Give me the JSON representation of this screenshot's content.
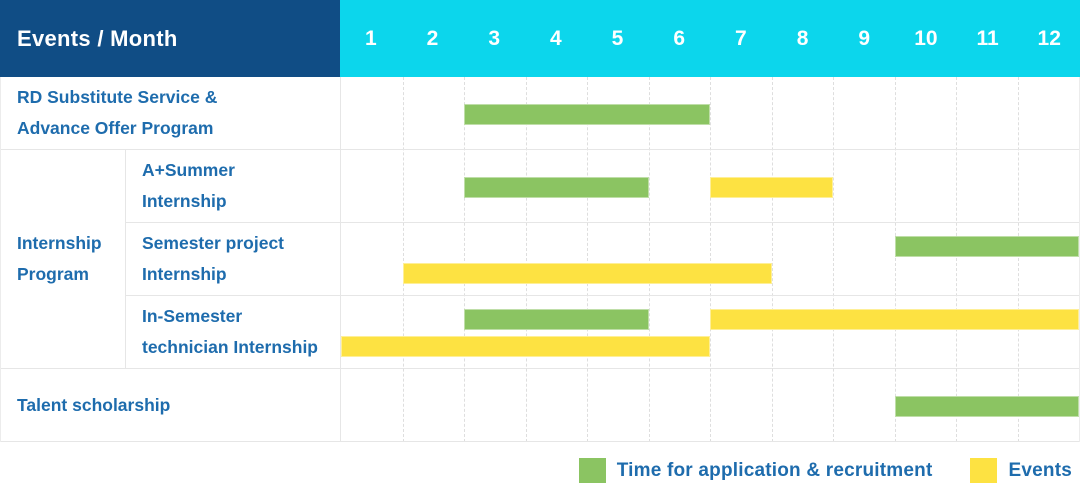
{
  "header": {
    "label": "Events / Month",
    "months": [
      "1",
      "2",
      "3",
      "4",
      "5",
      "6",
      "7",
      "8",
      "9",
      "10",
      "11",
      "12"
    ]
  },
  "colors": {
    "header_bg": "#104d85",
    "header_text": "#ffffff",
    "months_bg": "#0cd6ec",
    "label_text": "#1e6cad",
    "application": "#8bc462",
    "event": "#fde242",
    "grid_line": "#dedede"
  },
  "legend": {
    "items": [
      {
        "series": "application",
        "label": "Time for application & recruitment",
        "color": "#8bc462"
      },
      {
        "series": "event",
        "label": "Events",
        "color": "#fde242"
      }
    ]
  },
  "chart_data": {
    "type": "table",
    "subtype": "gantt",
    "title": "Events / Month",
    "x_axis": {
      "label": "Month",
      "ticks": [
        "1",
        "2",
        "3",
        "4",
        "5",
        "6",
        "7",
        "8",
        "9",
        "10",
        "11",
        "12"
      ],
      "range": [
        1,
        12
      ]
    },
    "legend": [
      "Time for application & recruitment",
      "Events"
    ],
    "legend_position": "bottom-right",
    "grid": "dashed-vertical-month-lines",
    "tasks": [
      {
        "name": "RD Substitute Service &\nAdvance Offer Program",
        "group": null,
        "bars": [
          {
            "series": "application",
            "start_month": 3,
            "end_month": 6,
            "lane": "center"
          }
        ]
      },
      {
        "name": "A+Summer\nInternship",
        "group": "Internship\nProgram",
        "bars": [
          {
            "series": "application",
            "start_month": 3,
            "end_month": 5,
            "lane": "center"
          },
          {
            "series": "event",
            "start_month": 7,
            "end_month": 8,
            "lane": "center"
          }
        ]
      },
      {
        "name": "Semester project\nInternship",
        "group": "Internship\nProgram",
        "bars": [
          {
            "series": "application",
            "start_month": 10,
            "end_month": 12,
            "lane": "top"
          },
          {
            "series": "event",
            "start_month": 2,
            "end_month": 7,
            "lane": "bottom"
          }
        ]
      },
      {
        "name": "In-Semester\ntechnician Internship",
        "group": "Internship\nProgram",
        "bars": [
          {
            "series": "application",
            "start_month": 3,
            "end_month": 5,
            "lane": "top"
          },
          {
            "series": "event",
            "start_month": 7,
            "end_month": 12,
            "lane": "top"
          },
          {
            "series": "event",
            "start_month": 1,
            "end_month": 6,
            "lane": "bottom"
          }
        ]
      },
      {
        "name": "Talent scholarship",
        "group": null,
        "bars": [
          {
            "series": "application",
            "start_month": 10,
            "end_month": 12,
            "lane": "center"
          }
        ]
      }
    ]
  }
}
